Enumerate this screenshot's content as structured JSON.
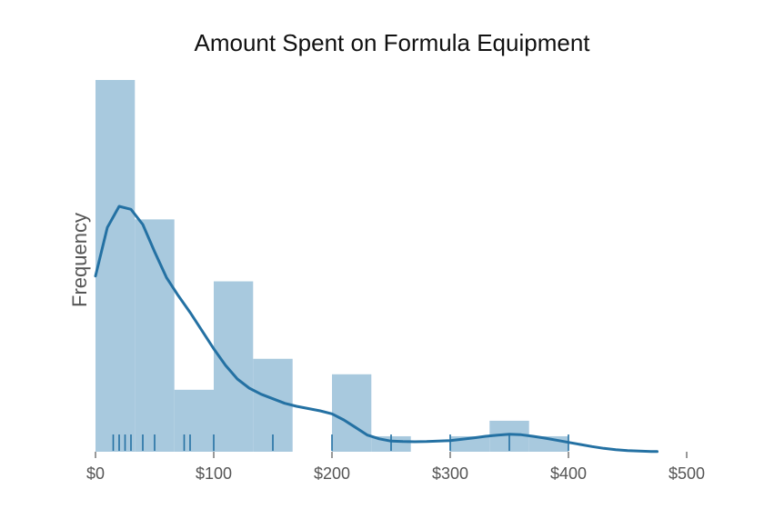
{
  "chart_data": {
    "type": "bar",
    "title": "Amount Spent on Formula Equipment",
    "xlabel": "",
    "ylabel": "Frequency",
    "xlim": [
      0,
      500
    ],
    "x_ticks": [
      {
        "value": 0,
        "label": "$0"
      },
      {
        "value": 100,
        "label": "$100"
      },
      {
        "value": 200,
        "label": "$200"
      },
      {
        "value": 300,
        "label": "$300"
      },
      {
        "value": 400,
        "label": "$400"
      },
      {
        "value": 500,
        "label": "$500"
      }
    ],
    "y_ticks_shown": false,
    "grid": false,
    "histogram": {
      "color": "#a8c9de",
      "bins": [
        {
          "x0": 0,
          "x1": 33.3,
          "count": 24
        },
        {
          "x0": 33.3,
          "x1": 66.7,
          "count": 15
        },
        {
          "x0": 66.7,
          "x1": 100,
          "count": 4
        },
        {
          "x0": 100,
          "x1": 133.3,
          "count": 11
        },
        {
          "x0": 133.3,
          "x1": 166.7,
          "count": 6
        },
        {
          "x0": 166.7,
          "x1": 200,
          "count": 0
        },
        {
          "x0": 200,
          "x1": 233.3,
          "count": 5
        },
        {
          "x0": 233.3,
          "x1": 266.7,
          "count": 1
        },
        {
          "x0": 266.7,
          "x1": 300,
          "count": 0
        },
        {
          "x0": 300,
          "x1": 333.3,
          "count": 1
        },
        {
          "x0": 333.3,
          "x1": 366.7,
          "count": 2
        },
        {
          "x0": 366.7,
          "x1": 400,
          "count": 1
        }
      ]
    },
    "kde": {
      "color": "#2471a3",
      "x": [
        0,
        10,
        20,
        30,
        40,
        50,
        60,
        70,
        80,
        90,
        100,
        110,
        120,
        130,
        140,
        150,
        160,
        170,
        180,
        190,
        200,
        210,
        220,
        230,
        240,
        250,
        260,
        270,
        280,
        290,
        300,
        310,
        320,
        330,
        340,
        350,
        360,
        370,
        380,
        390,
        400,
        410,
        420,
        430,
        440,
        450,
        460,
        470,
        475
      ],
      "y": [
        11.6,
        14.8,
        16.2,
        16.0,
        15.0,
        13.2,
        11.5,
        10.3,
        9.2,
        8.0,
        6.8,
        5.7,
        4.8,
        4.2,
        3.8,
        3.5,
        3.2,
        3.0,
        2.85,
        2.7,
        2.5,
        2.1,
        1.6,
        1.1,
        0.85,
        0.7,
        0.67,
        0.66,
        0.67,
        0.7,
        0.74,
        0.82,
        0.92,
        1.02,
        1.1,
        1.15,
        1.12,
        1.02,
        0.9,
        0.76,
        0.62,
        0.48,
        0.34,
        0.22,
        0.14,
        0.08,
        0.04,
        0.02,
        0.01
      ]
    },
    "rug": {
      "color": "#2471a3",
      "values": [
        15,
        20,
        25,
        30,
        40,
        50,
        75,
        80,
        100,
        150,
        200,
        250,
        300,
        350,
        400
      ]
    }
  }
}
